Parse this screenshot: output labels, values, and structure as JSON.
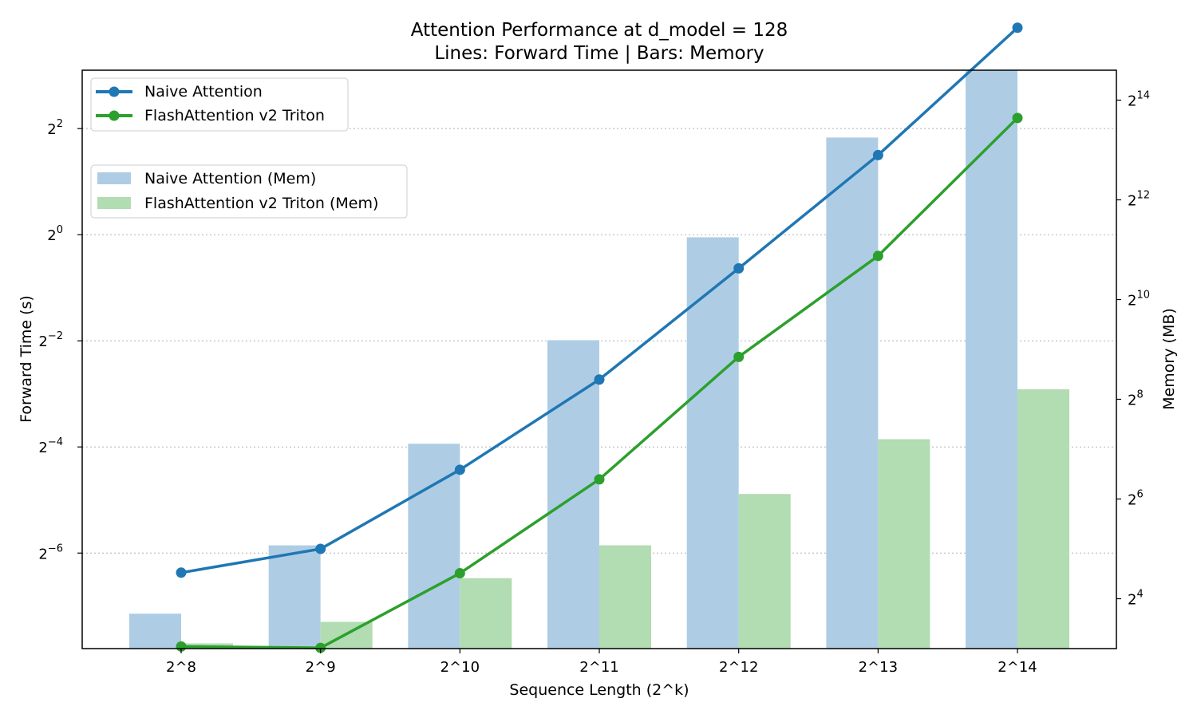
{
  "chart_data": {
    "type": "bar",
    "title": "Attention Performance at d_model = 128",
    "subtitle": "Lines: Forward Time | Bars: Memory",
    "xlabel": "Sequence Length (2^k)",
    "ylabel_left": "Forward Time (s)",
    "ylabel_right": "Memory (MB)",
    "categories": [
      "2^8",
      "2^9",
      "2^10",
      "2^11",
      "2^12",
      "2^13",
      "2^14"
    ],
    "left_axis": {
      "scale": "log2",
      "ticks": [
        {
          "base": "2",
          "exp": "−6",
          "value": 0.015625
        },
        {
          "base": "2",
          "exp": "−4",
          "value": 0.0625
        },
        {
          "base": "2",
          "exp": "−2",
          "value": 0.25
        },
        {
          "base": "2",
          "exp": "0",
          "value": 1
        },
        {
          "base": "2",
          "exp": "2",
          "value": 4
        }
      ],
      "ylim_log2": [
        -7.8,
        3.1
      ],
      "grid": true
    },
    "right_axis": {
      "scale": "log2",
      "ticks": [
        {
          "base": "2",
          "exp": "4",
          "value": 16
        },
        {
          "base": "2",
          "exp": "6",
          "value": 64
        },
        {
          "base": "2",
          "exp": "8",
          "value": 256
        },
        {
          "base": "2",
          "exp": "10",
          "value": 1024
        },
        {
          "base": "2",
          "exp": "12",
          "value": 4096
        },
        {
          "base": "2",
          "exp": "14",
          "value": 16384
        }
      ],
      "ylim_log2": [
        3.0,
        14.6
      ]
    },
    "line_series": [
      {
        "name": "Naive Attention",
        "color": "#1f77b4",
        "values": [
          0.0121,
          0.0165,
          0.0464,
          0.1508,
          0.6444,
          2.8284,
          14.93
        ]
      },
      {
        "name": "FlashAttention v2 Triton",
        "color": "#2ca02c",
        "values": [
          0.00461,
          0.00453,
          0.01201,
          0.04094,
          0.2027,
          0.7579,
          4.595
        ]
      }
    ],
    "bar_series": [
      {
        "name": "Naive Attention (Mem)",
        "color": "#aecde4",
        "values": [
          13.0,
          33.6,
          138,
          582,
          2435,
          9740,
          38900
        ]
      },
      {
        "name": "FlashAttention v2 Triton (Mem)",
        "color": "#b2dcb2",
        "values": [
          8.6,
          11.6,
          21.3,
          33.6,
          68.6,
          147,
          294
        ]
      }
    ],
    "legends": [
      "top-left",
      "upper-left"
    ]
  }
}
